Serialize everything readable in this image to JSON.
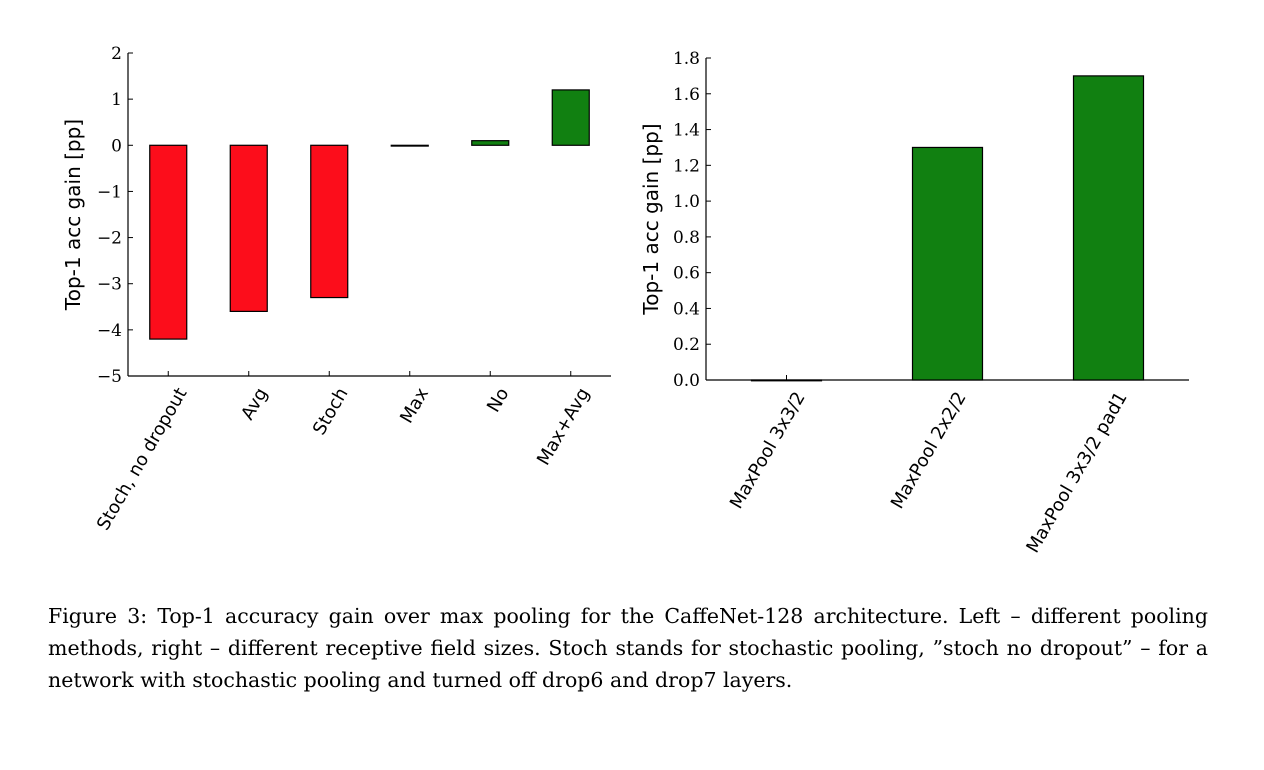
{
  "chart_data": [
    {
      "type": "bar",
      "categories": [
        "Stoch, no dropout",
        "Avg",
        "Stoch",
        "Max",
        "No",
        "Max+Avg"
      ],
      "values": [
        -4.2,
        -3.6,
        -3.3,
        0.0,
        0.1,
        1.2
      ],
      "colors": [
        "#fc0d1b",
        "#fc0d1b",
        "#fc0d1b",
        "#118011",
        "#118011",
        "#118011"
      ],
      "ylabel": "Top-1 acc gain [pp]",
      "ylim": [
        -5,
        2
      ],
      "yticks": [
        2,
        1,
        0,
        -1,
        -2,
        -3,
        -4,
        -5
      ],
      "ytick_labels": [
        "2",
        "1",
        "0",
        "−1",
        "−2",
        "−3",
        "−4",
        "−5"
      ],
      "grid": false
    },
    {
      "type": "bar",
      "categories": [
        "MaxPool 3x3/2",
        "MaxPool 2x2/2",
        "MaxPool 3x3/2 pad1"
      ],
      "values": [
        0.0,
        1.3,
        1.7
      ],
      "colors": [
        "#118011",
        "#118011",
        "#118011"
      ],
      "ylabel": "Top-1 acc gain [pp]",
      "ylim": [
        0,
        1.8
      ],
      "yticks": [
        0.0,
        0.2,
        0.4,
        0.6,
        0.8,
        1.0,
        1.2,
        1.4,
        1.6,
        1.8
      ],
      "ytick_labels": [
        "0.0",
        "0.2",
        "0.4",
        "0.6",
        "0.8",
        "1.0",
        "1.2",
        "1.4",
        "1.6",
        "1.8"
      ],
      "grid": false
    }
  ],
  "caption": "Figure 3: Top-1 accuracy gain over max pooling for the CaffeNet-128 architecture. Left – different pooling methods, right – different receptive field sizes. Stoch stands for stochastic pooling, ”stoch no dropout” – for a network with stochastic pooling and turned off drop6 and drop7 layers."
}
